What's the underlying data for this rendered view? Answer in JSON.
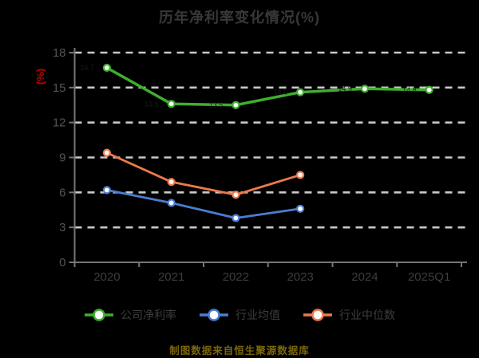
{
  "title": "历年净利率变化情况(%)",
  "y_unit_label": "(%)",
  "caption": "制图数据来自恒生聚源数据库",
  "colors": {
    "background": "#000000",
    "title_text": "#383838",
    "axis_line": "#757575",
    "gridline": "#c8c8c8",
    "y_tick_text": "#565656",
    "x_tick_text": "#3d3d3d",
    "legend_text": "#3d3d3d",
    "y_unit_text": "#cc0000",
    "caption_text": "#7c660a",
    "marker_fill": "#ffffff",
    "point_label_text": "#1a1a1a"
  },
  "chart_data": {
    "type": "line",
    "title": "历年净利率变化情况(%)",
    "categories": [
      "2020",
      "2021",
      "2022",
      "2023",
      "2024",
      "2025Q1"
    ],
    "series": [
      {
        "name": "公司净利率",
        "color": "#3fae2e",
        "values": [
          16.7,
          13.6,
          13.5,
          14.6,
          14.9,
          14.8
        ],
        "point_labels": true
      },
      {
        "name": "行业均值",
        "color": "#4a7dd3",
        "values": [
          6.2,
          5.1,
          3.8,
          4.6,
          null,
          null
        ],
        "point_labels": false
      },
      {
        "name": "行业中位数",
        "color": "#ec7a4b",
        "values": [
          9.4,
          6.9,
          5.8,
          7.5,
          null,
          null
        ],
        "point_labels": false
      }
    ],
    "ylabel": "(%)",
    "ylim": [
      0,
      18
    ],
    "yticks": [
      0,
      3,
      6,
      9,
      12,
      15,
      18
    ],
    "grid": "horizontal-dashed",
    "legend_position": "bottom"
  }
}
